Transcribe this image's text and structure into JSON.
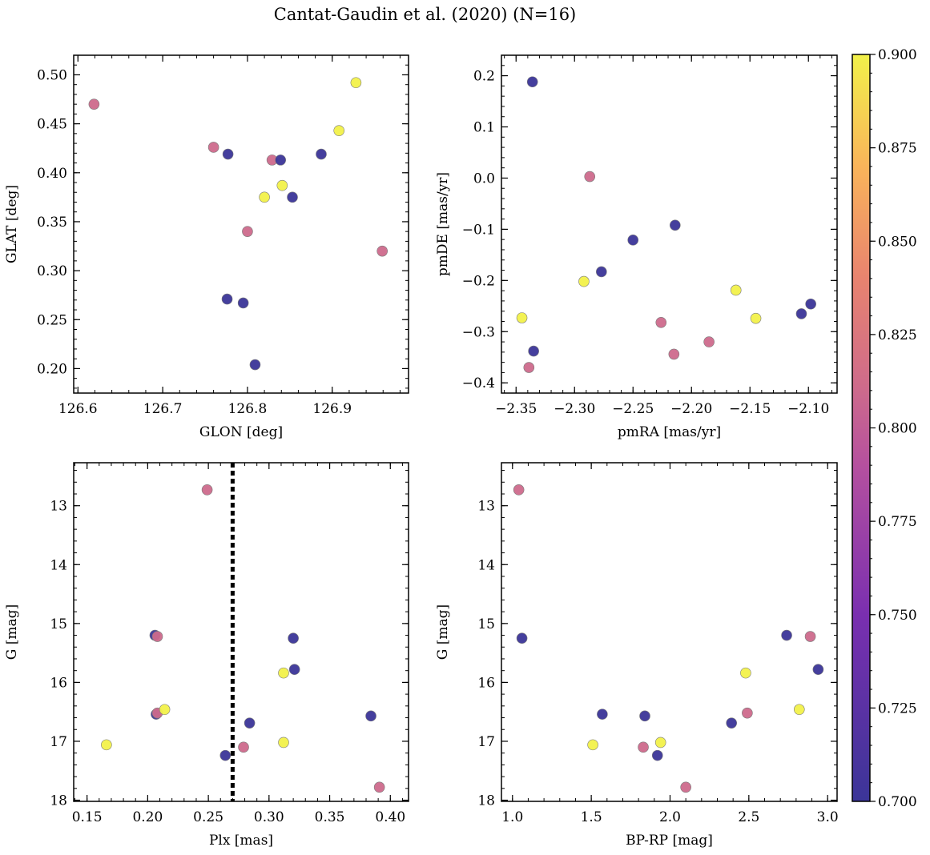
{
  "title": "Cantat-Gaudin et al. (2020) (N=16)",
  "colors": {
    "low": "#3b3598",
    "mid": "#cd6a8c",
    "high": "#f2f14a",
    "point_edge": "#7a7a7a"
  },
  "chart_data": [
    {
      "type": "scatter",
      "xlabel": "GLON [deg]",
      "ylabel": "GLAT [deg]",
      "xlim": [
        126.595,
        126.99
      ],
      "ylim": [
        0.175,
        0.52
      ],
      "xticks": [
        126.6,
        126.7,
        126.8,
        126.9
      ],
      "xtick_labels": [
        "126.6",
        "126.7",
        "126.8",
        "126.9"
      ],
      "yticks": [
        0.2,
        0.25,
        0.3,
        0.35,
        0.4,
        0.45,
        0.5
      ],
      "ytick_labels": [
        "0.20",
        "0.25",
        "0.30",
        "0.35",
        "0.40",
        "0.45",
        "0.50"
      ],
      "y_inverted": false,
      "points": [
        {
          "x": 126.619,
          "y": 0.47,
          "c": 0.8
        },
        {
          "x": 126.76,
          "y": 0.426,
          "c": 0.8
        },
        {
          "x": 126.777,
          "y": 0.419,
          "c": 0.7
        },
        {
          "x": 126.776,
          "y": 0.271,
          "c": 0.7
        },
        {
          "x": 126.795,
          "y": 0.267,
          "c": 0.7
        },
        {
          "x": 126.8,
          "y": 0.34,
          "c": 0.8
        },
        {
          "x": 126.809,
          "y": 0.204,
          "c": 0.7
        },
        {
          "x": 126.82,
          "y": 0.375,
          "c": 0.9
        },
        {
          "x": 126.829,
          "y": 0.413,
          "c": 0.8
        },
        {
          "x": 126.839,
          "y": 0.413,
          "c": 0.7
        },
        {
          "x": 126.841,
          "y": 0.387,
          "c": 0.9
        },
        {
          "x": 126.853,
          "y": 0.375,
          "c": 0.7
        },
        {
          "x": 126.887,
          "y": 0.419,
          "c": 0.7
        },
        {
          "x": 126.908,
          "y": 0.443,
          "c": 0.9
        },
        {
          "x": 126.928,
          "y": 0.492,
          "c": 0.9
        },
        {
          "x": 126.959,
          "y": 0.32,
          "c": 0.8
        }
      ]
    },
    {
      "type": "scatter",
      "xlabel": "pmRA [mas/yr]",
      "ylabel": "pmDE [mas/yr]",
      "xlim": [
        -2.3625,
        -2.0755
      ],
      "ylim": [
        -0.42,
        0.24
      ],
      "xticks": [
        -2.35,
        -2.3,
        -2.25,
        -2.2,
        -2.15,
        -2.1
      ],
      "xtick_labels": [
        "−2.35",
        "−2.30",
        "−2.25",
        "−2.20",
        "−2.15",
        "−2.10"
      ],
      "yticks": [
        -0.4,
        -0.3,
        -0.2,
        -0.1,
        0.0,
        0.1,
        0.2
      ],
      "ytick_labels": [
        "−0.4",
        "−0.3",
        "−0.2",
        "−0.1",
        "0.0",
        "0.1",
        "0.2"
      ],
      "y_inverted": false,
      "points": [
        {
          "x": -2.345,
          "y": -0.273,
          "c": 0.9
        },
        {
          "x": -2.339,
          "y": -0.37,
          "c": 0.8
        },
        {
          "x": -2.336,
          "y": 0.188,
          "c": 0.7
        },
        {
          "x": -2.335,
          "y": -0.338,
          "c": 0.7
        },
        {
          "x": -2.292,
          "y": -0.202,
          "c": 0.9
        },
        {
          "x": -2.287,
          "y": 0.003,
          "c": 0.8
        },
        {
          "x": -2.277,
          "y": -0.183,
          "c": 0.7
        },
        {
          "x": -2.25,
          "y": -0.121,
          "c": 0.7
        },
        {
          "x": -2.226,
          "y": -0.282,
          "c": 0.8
        },
        {
          "x": -2.215,
          "y": -0.344,
          "c": 0.8
        },
        {
          "x": -2.214,
          "y": -0.092,
          "c": 0.7
        },
        {
          "x": -2.185,
          "y": -0.32,
          "c": 0.8
        },
        {
          "x": -2.162,
          "y": -0.219,
          "c": 0.9
        },
        {
          "x": -2.145,
          "y": -0.274,
          "c": 0.9
        },
        {
          "x": -2.106,
          "y": -0.265,
          "c": 0.7
        },
        {
          "x": -2.098,
          "y": -0.246,
          "c": 0.7
        }
      ]
    },
    {
      "type": "scatter",
      "xlabel": "Plx [mas]",
      "ylabel": "G [mag]",
      "xlim": [
        0.139,
        0.415
      ],
      "ylim": [
        18.02,
        12.27
      ],
      "xticks": [
        0.15,
        0.2,
        0.25,
        0.3,
        0.35,
        0.4
      ],
      "xtick_labels": [
        "0.15",
        "0.20",
        "0.25",
        "0.30",
        "0.35",
        "0.40"
      ],
      "yticks": [
        13,
        14,
        15,
        16,
        17,
        18
      ],
      "ytick_labels": [
        "13",
        "14",
        "15",
        "16",
        "17",
        "18"
      ],
      "y_inverted": true,
      "vline": 0.27,
      "points": [
        {
          "x": 0.166,
          "y": 17.06,
          "c": 0.9
        },
        {
          "x": 0.206,
          "y": 15.2,
          "c": 0.7
        },
        {
          "x": 0.208,
          "y": 15.22,
          "c": 0.8
        },
        {
          "x": 0.207,
          "y": 16.54,
          "c": 0.7
        },
        {
          "x": 0.208,
          "y": 16.52,
          "c": 0.8
        },
        {
          "x": 0.214,
          "y": 16.46,
          "c": 0.9
        },
        {
          "x": 0.249,
          "y": 12.73,
          "c": 0.8
        },
        {
          "x": 0.264,
          "y": 17.24,
          "c": 0.7
        },
        {
          "x": 0.279,
          "y": 17.1,
          "c": 0.8
        },
        {
          "x": 0.284,
          "y": 16.69,
          "c": 0.7
        },
        {
          "x": 0.312,
          "y": 15.84,
          "c": 0.9
        },
        {
          "x": 0.312,
          "y": 17.02,
          "c": 0.9
        },
        {
          "x": 0.32,
          "y": 15.25,
          "c": 0.7
        },
        {
          "x": 0.321,
          "y": 15.78,
          "c": 0.7
        },
        {
          "x": 0.384,
          "y": 16.57,
          "c": 0.7
        },
        {
          "x": 0.391,
          "y": 17.78,
          "c": 0.8
        }
      ]
    },
    {
      "type": "scatter",
      "xlabel": "BP-RP [mag]",
      "ylabel": "G [mag]",
      "xlim": [
        0.93,
        3.06
      ],
      "ylim": [
        18.02,
        12.27
      ],
      "xticks": [
        1.0,
        1.5,
        2.0,
        2.5,
        3.0
      ],
      "xtick_labels": [
        "1.0",
        "1.5",
        "2.0",
        "2.5",
        "3.0"
      ],
      "yticks": [
        13,
        14,
        15,
        16,
        17,
        18
      ],
      "ytick_labels": [
        "13",
        "14",
        "15",
        "16",
        "17",
        "18"
      ],
      "y_inverted": true,
      "points": [
        {
          "x": 1.04,
          "y": 12.73,
          "c": 0.8
        },
        {
          "x": 1.06,
          "y": 15.25,
          "c": 0.7
        },
        {
          "x": 1.51,
          "y": 17.06,
          "c": 0.9
        },
        {
          "x": 1.57,
          "y": 16.54,
          "c": 0.7
        },
        {
          "x": 1.83,
          "y": 17.1,
          "c": 0.8
        },
        {
          "x": 1.84,
          "y": 16.57,
          "c": 0.7
        },
        {
          "x": 1.92,
          "y": 17.24,
          "c": 0.7
        },
        {
          "x": 1.94,
          "y": 17.02,
          "c": 0.9
        },
        {
          "x": 2.1,
          "y": 17.78,
          "c": 0.8
        },
        {
          "x": 2.39,
          "y": 16.69,
          "c": 0.7
        },
        {
          "x": 2.48,
          "y": 15.84,
          "c": 0.9
        },
        {
          "x": 2.49,
          "y": 16.52,
          "c": 0.8
        },
        {
          "x": 2.74,
          "y": 15.2,
          "c": 0.7
        },
        {
          "x": 2.82,
          "y": 16.46,
          "c": 0.9
        },
        {
          "x": 2.89,
          "y": 15.22,
          "c": 0.8
        },
        {
          "x": 2.94,
          "y": 15.78,
          "c": 0.7
        }
      ]
    }
  ],
  "colorbar": {
    "min": 0.7,
    "max": 0.9,
    "ticks": [
      0.7,
      0.725,
      0.75,
      0.775,
      0.8,
      0.825,
      0.85,
      0.875,
      0.9
    ],
    "tick_labels": [
      "0.700",
      "0.725",
      "0.750",
      "0.775",
      "0.800",
      "0.825",
      "0.850",
      "0.875",
      "0.900"
    ]
  }
}
